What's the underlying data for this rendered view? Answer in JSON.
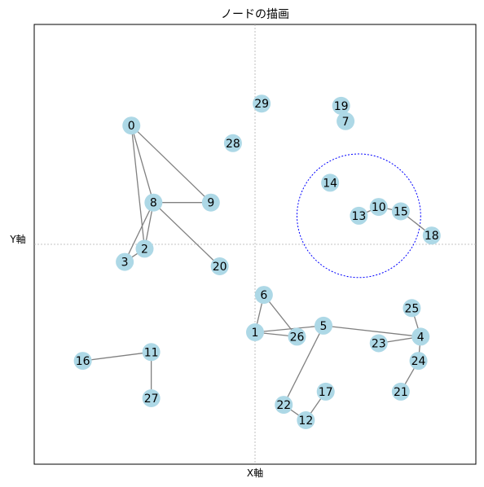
{
  "chart_data": {
    "type": "network",
    "title": "ノードの描画",
    "xlabel": "X軸",
    "ylabel": "Y軸",
    "xlim": [
      -1,
      1
    ],
    "ylim": [
      -1,
      1
    ],
    "grid": false,
    "crosshair": {
      "x": 0,
      "y": 0
    },
    "highlight_circle": {
      "center": [
        0.47,
        0.13
      ],
      "radius": 0.28,
      "color": "#0000ff"
    },
    "node_color": "#add8e6",
    "edge_color": "#808080",
    "nodes": [
      {
        "id": "0",
        "x": -0.56,
        "y": 0.54
      },
      {
        "id": "1",
        "x": 0.0,
        "y": -0.4
      },
      {
        "id": "2",
        "x": -0.5,
        "y": -0.02
      },
      {
        "id": "3",
        "x": -0.59,
        "y": -0.08
      },
      {
        "id": "4",
        "x": 0.75,
        "y": -0.42
      },
      {
        "id": "5",
        "x": 0.31,
        "y": -0.37
      },
      {
        "id": "6",
        "x": 0.04,
        "y": -0.23
      },
      {
        "id": "7",
        "x": 0.41,
        "y": 0.56
      },
      {
        "id": "8",
        "x": -0.46,
        "y": 0.19
      },
      {
        "id": "9",
        "x": -0.2,
        "y": 0.19
      },
      {
        "id": "10",
        "x": 0.56,
        "y": 0.17
      },
      {
        "id": "11",
        "x": -0.47,
        "y": -0.49
      },
      {
        "id": "12",
        "x": 0.23,
        "y": -0.8
      },
      {
        "id": "13",
        "x": 0.47,
        "y": 0.13
      },
      {
        "id": "14",
        "x": 0.34,
        "y": 0.28
      },
      {
        "id": "15",
        "x": 0.66,
        "y": 0.15
      },
      {
        "id": "16",
        "x": -0.78,
        "y": -0.53
      },
      {
        "id": "17",
        "x": 0.32,
        "y": -0.67
      },
      {
        "id": "18",
        "x": 0.8,
        "y": 0.04
      },
      {
        "id": "19",
        "x": 0.39,
        "y": 0.63
      },
      {
        "id": "20",
        "x": -0.16,
        "y": -0.1
      },
      {
        "id": "21",
        "x": 0.66,
        "y": -0.67
      },
      {
        "id": "22",
        "x": 0.13,
        "y": -0.73
      },
      {
        "id": "23",
        "x": 0.56,
        "y": -0.45
      },
      {
        "id": "24",
        "x": 0.74,
        "y": -0.53
      },
      {
        "id": "25",
        "x": 0.71,
        "y": -0.29
      },
      {
        "id": "26",
        "x": 0.19,
        "y": -0.42
      },
      {
        "id": "27",
        "x": -0.47,
        "y": -0.7
      },
      {
        "id": "28",
        "x": -0.1,
        "y": 0.46
      },
      {
        "id": "29",
        "x": 0.03,
        "y": 0.64
      }
    ],
    "edges": [
      [
        "0",
        "8"
      ],
      [
        "0",
        "9"
      ],
      [
        "0",
        "2"
      ],
      [
        "8",
        "9"
      ],
      [
        "8",
        "20"
      ],
      [
        "8",
        "3"
      ],
      [
        "8",
        "2"
      ],
      [
        "3",
        "2"
      ],
      [
        "1",
        "6"
      ],
      [
        "1",
        "26"
      ],
      [
        "1",
        "5"
      ],
      [
        "6",
        "26"
      ],
      [
        "5",
        "4"
      ],
      [
        "5",
        "22"
      ],
      [
        "4",
        "25"
      ],
      [
        "4",
        "24"
      ],
      [
        "4",
        "23"
      ],
      [
        "24",
        "21"
      ],
      [
        "22",
        "12"
      ],
      [
        "12",
        "17"
      ],
      [
        "11",
        "16"
      ],
      [
        "11",
        "27"
      ],
      [
        "13",
        "10"
      ],
      [
        "10",
        "15"
      ],
      [
        "15",
        "18"
      ]
    ]
  }
}
